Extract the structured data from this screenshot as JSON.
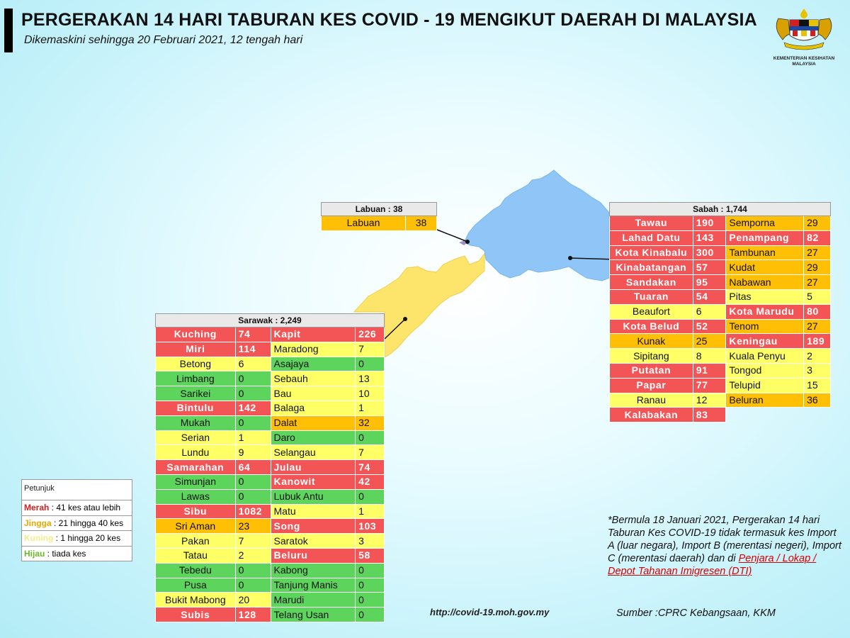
{
  "header": {
    "title": "PERGERAKAN 14 HARI TABURAN KES COVID - 19 MENGIKUT DAERAH DI MALAYSIA",
    "subtitle": "Dikemaskini sehingga 20 Februari 2021, 12 tengah hari",
    "logo_text1": "KEMENTERIAN KESIHATAN",
    "logo_text2": "MALAYSIA"
  },
  "colors": {
    "merah": "#f35557",
    "jingga": "#ffbf04",
    "kuning": "#ffff66",
    "hijau": "#5dd55d",
    "sabah_map": "#8fc6f7",
    "sarawak_map": "#fde46a"
  },
  "labuan": {
    "header": "Labuan : 38",
    "rows": [
      {
        "name": "Labuan",
        "value": "38",
        "level": "o"
      }
    ]
  },
  "sabah": {
    "header": "Sabah : 1,744",
    "rows": [
      [
        {
          "name": "Tawau",
          "value": "190",
          "level": "r"
        },
        {
          "name": "Semporna",
          "value": "29",
          "level": "o"
        }
      ],
      [
        {
          "name": "Lahad Datu",
          "value": "143",
          "level": "r"
        },
        {
          "name": "Penampang",
          "value": "82",
          "level": "r"
        }
      ],
      [
        {
          "name": "Kota Kinabalu",
          "value": "300",
          "level": "r"
        },
        {
          "name": "Tambunan",
          "value": "27",
          "level": "o"
        }
      ],
      [
        {
          "name": "Kinabatangan",
          "value": "57",
          "level": "r"
        },
        {
          "name": "Kudat",
          "value": "29",
          "level": "o"
        }
      ],
      [
        {
          "name": "Sandakan",
          "value": "95",
          "level": "r"
        },
        {
          "name": "Nabawan",
          "value": "27",
          "level": "o"
        }
      ],
      [
        {
          "name": "Tuaran",
          "value": "54",
          "level": "r"
        },
        {
          "name": "Pitas",
          "value": "5",
          "level": "y"
        }
      ],
      [
        {
          "name": "Beaufort",
          "value": "6",
          "level": "y"
        },
        {
          "name": "Kota Marudu",
          "value": "80",
          "level": "r"
        }
      ],
      [
        {
          "name": "Kota Belud",
          "value": "52",
          "level": "r"
        },
        {
          "name": "Tenom",
          "value": "27",
          "level": "o"
        }
      ],
      [
        {
          "name": "Kunak",
          "value": "25",
          "level": "o"
        },
        {
          "name": "Keningau",
          "value": "189",
          "level": "r"
        }
      ],
      [
        {
          "name": "Sipitang",
          "value": "8",
          "level": "y"
        },
        {
          "name": "Kuala Penyu",
          "value": "2",
          "level": "y"
        }
      ],
      [
        {
          "name": "Putatan",
          "value": "91",
          "level": "r"
        },
        {
          "name": "Tongod",
          "value": "3",
          "level": "y"
        }
      ],
      [
        {
          "name": "Papar",
          "value": "77",
          "level": "r"
        },
        {
          "name": "Telupid",
          "value": "15",
          "level": "y"
        }
      ],
      [
        {
          "name": "Ranau",
          "value": "12",
          "level": "y"
        },
        {
          "name": "Beluran",
          "value": "36",
          "level": "o"
        }
      ],
      [
        {
          "name": "Kalabakan",
          "value": "83",
          "level": "r"
        },
        null
      ]
    ]
  },
  "sarawak": {
    "header": "Sarawak : 2,249",
    "rows": [
      [
        {
          "name": "Kuching",
          "value": "74",
          "level": "r"
        },
        {
          "name": "Kapit",
          "value": "226",
          "level": "r"
        }
      ],
      [
        {
          "name": "Miri",
          "value": "114",
          "level": "r"
        },
        {
          "name": "Maradong",
          "value": "7",
          "level": "y"
        }
      ],
      [
        {
          "name": "Betong",
          "value": "6",
          "level": "y"
        },
        {
          "name": "Asajaya",
          "value": "0",
          "level": "g"
        }
      ],
      [
        {
          "name": "Limbang",
          "value": "0",
          "level": "g"
        },
        {
          "name": "Sebauh",
          "value": "13",
          "level": "y"
        }
      ],
      [
        {
          "name": "Sarikei",
          "value": "0",
          "level": "g"
        },
        {
          "name": "Bau",
          "value": "10",
          "level": "y"
        }
      ],
      [
        {
          "name": "Bintulu",
          "value": "142",
          "level": "r"
        },
        {
          "name": "Balaga",
          "value": "1",
          "level": "y"
        }
      ],
      [
        {
          "name": "Mukah",
          "value": "0",
          "level": "g"
        },
        {
          "name": "Dalat",
          "value": "32",
          "level": "o"
        }
      ],
      [
        {
          "name": "Serian",
          "value": "1",
          "level": "y"
        },
        {
          "name": "Daro",
          "value": "0",
          "level": "g"
        }
      ],
      [
        {
          "name": "Lundu",
          "value": "9",
          "level": "y"
        },
        {
          "name": "Selangau",
          "value": "7",
          "level": "y"
        }
      ],
      [
        {
          "name": "Samarahan",
          "value": "64",
          "level": "r"
        },
        {
          "name": "Julau",
          "value": "74",
          "level": "r"
        }
      ],
      [
        {
          "name": "Simunjan",
          "value": "0",
          "level": "g"
        },
        {
          "name": "Kanowit",
          "value": "42",
          "level": "r"
        }
      ],
      [
        {
          "name": "Lawas",
          "value": "0",
          "level": "g"
        },
        {
          "name": "Lubuk Antu",
          "value": "0",
          "level": "g"
        }
      ],
      [
        {
          "name": "Sibu",
          "value": "1082",
          "level": "r"
        },
        {
          "name": "Matu",
          "value": "1",
          "level": "y"
        }
      ],
      [
        {
          "name": "Sri Aman",
          "value": "23",
          "level": "o"
        },
        {
          "name": "Song",
          "value": "103",
          "level": "r"
        }
      ],
      [
        {
          "name": "Pakan",
          "value": "7",
          "level": "y"
        },
        {
          "name": "Saratok",
          "value": "3",
          "level": "y"
        }
      ],
      [
        {
          "name": "Tatau",
          "value": "2",
          "level": "y"
        },
        {
          "name": "Beluru",
          "value": "58",
          "level": "r"
        }
      ],
      [
        {
          "name": "Tebedu",
          "value": "0",
          "level": "g"
        },
        {
          "name": "Kabong",
          "value": "0",
          "level": "g"
        }
      ],
      [
        {
          "name": "Pusa",
          "value": "0",
          "level": "g"
        },
        {
          "name": "Tanjung Manis",
          "value": "0",
          "level": "g"
        }
      ],
      [
        {
          "name": "Bukit Mabong",
          "value": "20",
          "level": "y"
        },
        {
          "name": "Marudi",
          "value": "0",
          "level": "g"
        }
      ],
      [
        {
          "name": "Subis",
          "value": "128",
          "level": "r"
        },
        {
          "name": "Telang Usan",
          "value": "0",
          "level": "g"
        }
      ]
    ]
  },
  "legend": {
    "title": "Petunjuk",
    "items": [
      {
        "key": "Merah",
        "desc": " : 41 kes atau lebih",
        "color": "#d42020"
      },
      {
        "key": "Jingga",
        "desc": " : 21 hingga 40 kes",
        "color": "#e8a800"
      },
      {
        "key": "Kuning",
        "desc": " : 1 hingga 20 kes",
        "color": "#f4ec8a"
      },
      {
        "key": "Hijau",
        "desc": " : tiada kes",
        "color": "#6ab82a"
      }
    ]
  },
  "note": {
    "text": "*Bermula 18 Januari 2021, Pergerakan 14 hari Taburan Kes COVID-19 tidak termasuk kes Import A (luar negara), Import B (merentasi negeri), Import C (merentasi daerah) dan di ",
    "link": "Penjara / Lokap / Depot Tahanan Imigresen (DTI)"
  },
  "footer": {
    "url": "http://covid-19.moh.gov.my",
    "source": "Sumber :CPRC Kebangsaan,  KKM"
  }
}
